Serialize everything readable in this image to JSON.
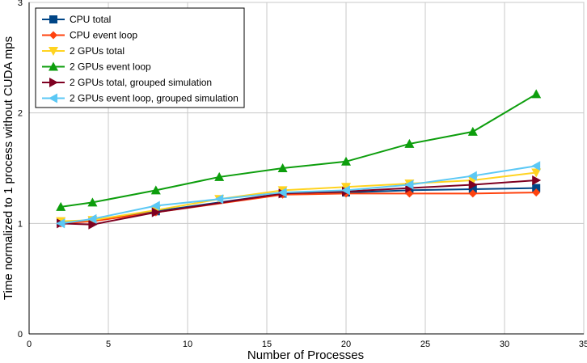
{
  "chart_data": {
    "type": "line",
    "title": "",
    "xlabel": "Number of Processes",
    "ylabel": "Time normalized to 1 process without CUDA mps",
    "xlim": [
      0,
      35
    ],
    "ylim": [
      0,
      3
    ],
    "xticks": [
      "0",
      "5",
      "10",
      "15",
      "20",
      "25",
      "30",
      "35"
    ],
    "yticks": [
      "0",
      "1",
      "2",
      "3"
    ],
    "grid": true,
    "legend_position": "top-left",
    "series": [
      {
        "name": "CPU total",
        "color": "#004586",
        "marker": "square",
        "x": [
          2,
          4,
          8,
          16,
          20,
          24,
          28,
          32
        ],
        "y": [
          1.01,
          1.02,
          1.11,
          1.27,
          1.28,
          1.3,
          1.31,
          1.32
        ]
      },
      {
        "name": "CPU event loop",
        "color": "#ff420e",
        "marker": "diamond",
        "x": [
          2,
          4,
          8,
          16,
          20,
          24,
          28,
          32
        ],
        "y": [
          1.0,
          1.02,
          1.1,
          1.26,
          1.27,
          1.27,
          1.27,
          1.28
        ]
      },
      {
        "name": "2 GPUs total",
        "color": "#ffd320",
        "marker": "triangle-down",
        "x": [
          2,
          4,
          8,
          12,
          16,
          20,
          24,
          28,
          32
        ],
        "y": [
          1.02,
          1.03,
          1.12,
          1.22,
          1.3,
          1.33,
          1.36,
          1.39,
          1.46
        ]
      },
      {
        "name": "2 GPUs event loop",
        "color": "#0d9e0d",
        "marker": "triangle-up",
        "x": [
          2,
          4,
          8,
          12,
          16,
          20,
          24,
          28,
          32
        ],
        "y": [
          1.15,
          1.19,
          1.3,
          1.42,
          1.5,
          1.56,
          1.72,
          1.83,
          2.17
        ]
      },
      {
        "name": "2 GPUs total, grouped simulation",
        "color": "#7e0021",
        "marker": "triangle-right",
        "x": [
          2,
          4,
          8,
          16,
          20,
          24,
          28,
          32
        ],
        "y": [
          1.0,
          0.99,
          1.1,
          1.27,
          1.29,
          1.32,
          1.35,
          1.39
        ]
      },
      {
        "name": "2 GPUs event loop, grouped simulation",
        "color": "#5bc8f5",
        "marker": "triangle-left",
        "x": [
          2,
          4,
          8,
          12,
          16,
          20,
          24,
          28,
          32
        ],
        "y": [
          1.0,
          1.04,
          1.16,
          1.22,
          1.28,
          1.3,
          1.35,
          1.43,
          1.52
        ]
      }
    ]
  }
}
